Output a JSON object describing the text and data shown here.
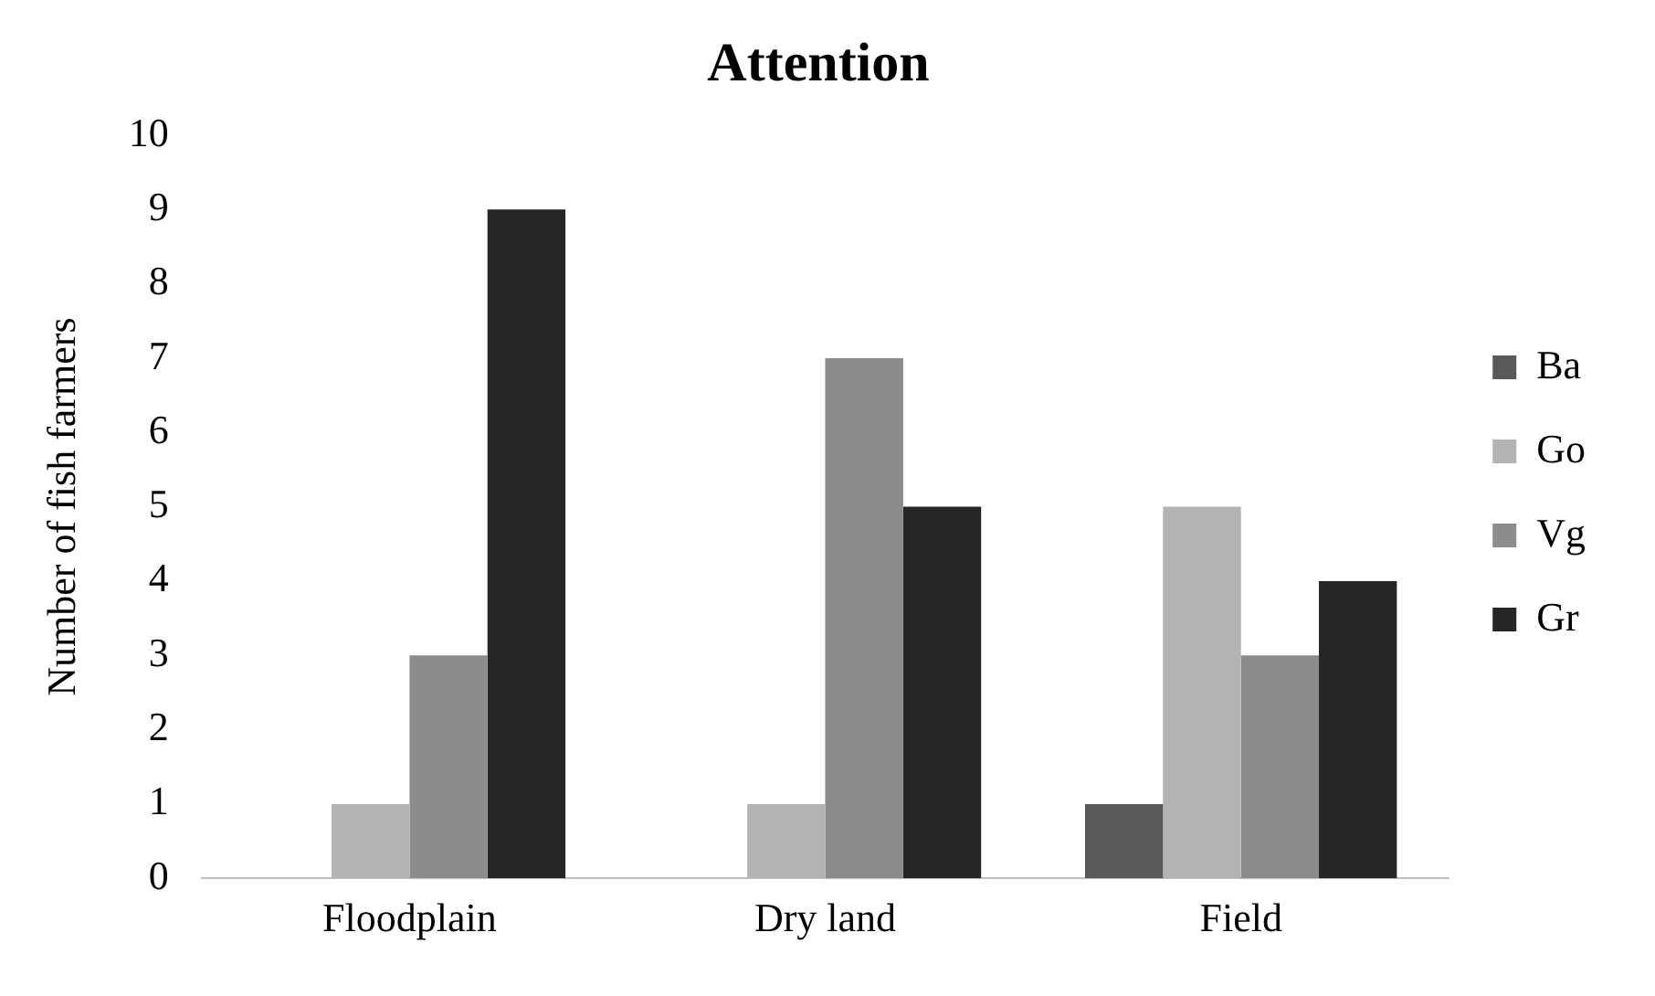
{
  "chart_data": {
    "type": "bar",
    "title": "Attention",
    "ylabel": "Number of fish farmers",
    "categories": [
      "Floodplain",
      "Dry land",
      "Field"
    ],
    "series": [
      {
        "name": "Ba",
        "color": "#595959",
        "values": [
          0,
          0,
          1
        ]
      },
      {
        "name": "Go",
        "color": "#b3b3b3",
        "values": [
          1,
          1,
          5
        ]
      },
      {
        "name": "Vg",
        "color": "#8c8c8c",
        "values": [
          3,
          7,
          3
        ]
      },
      {
        "name": "Gr",
        "color": "#262626",
        "values": [
          9,
          5,
          4
        ]
      }
    ],
    "ylim": [
      0,
      10
    ],
    "yticks": [
      0,
      1,
      2,
      3,
      4,
      5,
      6,
      7,
      8,
      9,
      10
    ],
    "grid": false,
    "legend": "right"
  }
}
